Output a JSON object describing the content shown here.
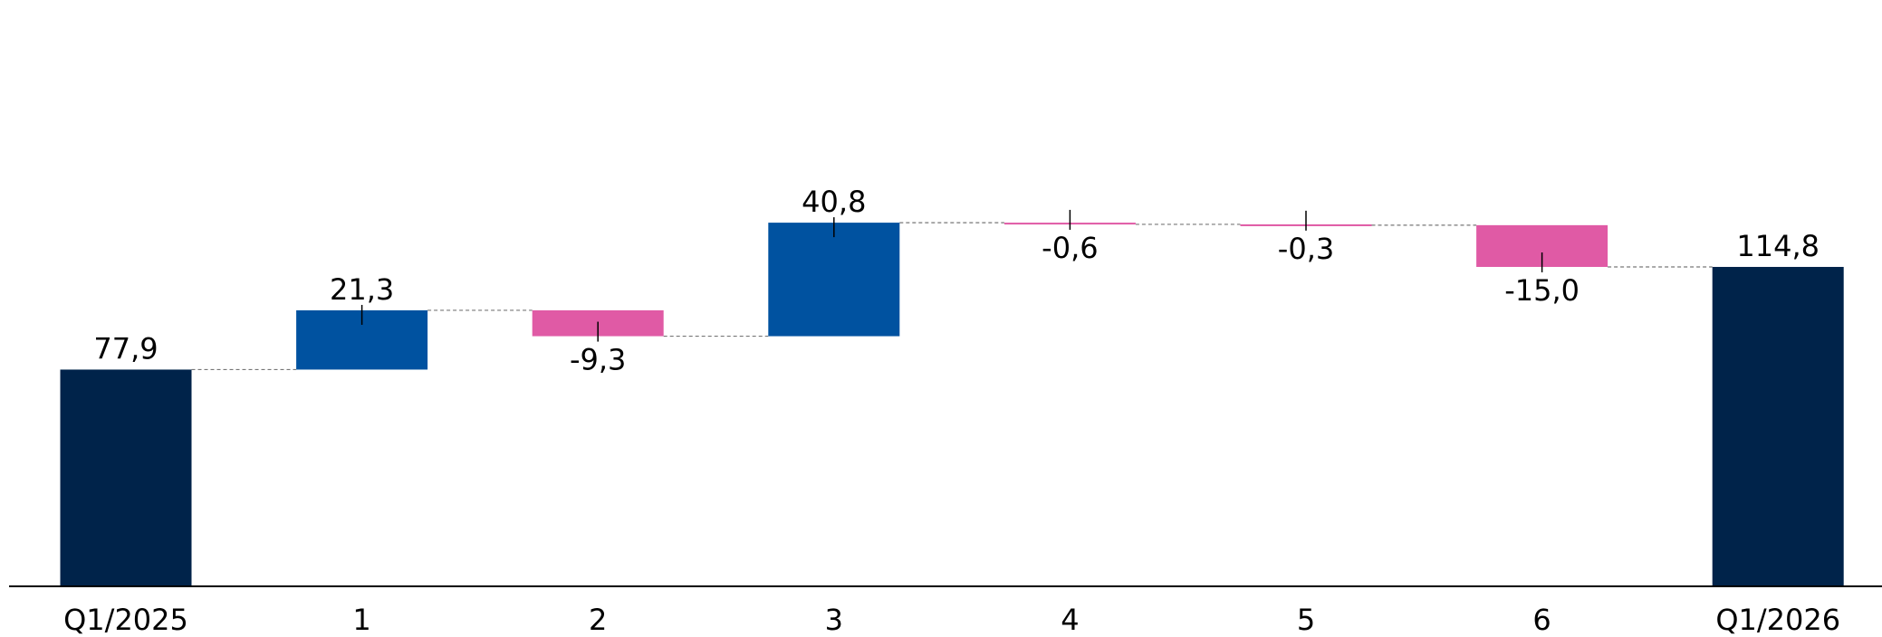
{
  "chart_data": {
    "type": "waterfall",
    "categories": [
      "Q1/2025",
      "1",
      "2",
      "3",
      "4",
      "5",
      "6",
      "Q1/2026"
    ],
    "values": [
      77.9,
      21.3,
      -9.3,
      40.8,
      -0.6,
      -0.3,
      -15.0,
      114.8
    ],
    "kinds": [
      "total",
      "delta",
      "delta",
      "delta",
      "delta",
      "delta",
      "delta",
      "total"
    ],
    "value_labels": [
      "77,9",
      "21,3",
      "-9,3",
      "40,8",
      "-0,6",
      "-0,3",
      "-15,0",
      "114,8"
    ],
    "ylim": [
      0,
      135
    ],
    "title": "",
    "xlabel": "",
    "ylabel": "",
    "grid": false,
    "colors": {
      "total": "#00234a",
      "increase": "#0052a0",
      "decrease": "#e05aa5",
      "connector": "#777777",
      "axis": "#000000"
    }
  }
}
